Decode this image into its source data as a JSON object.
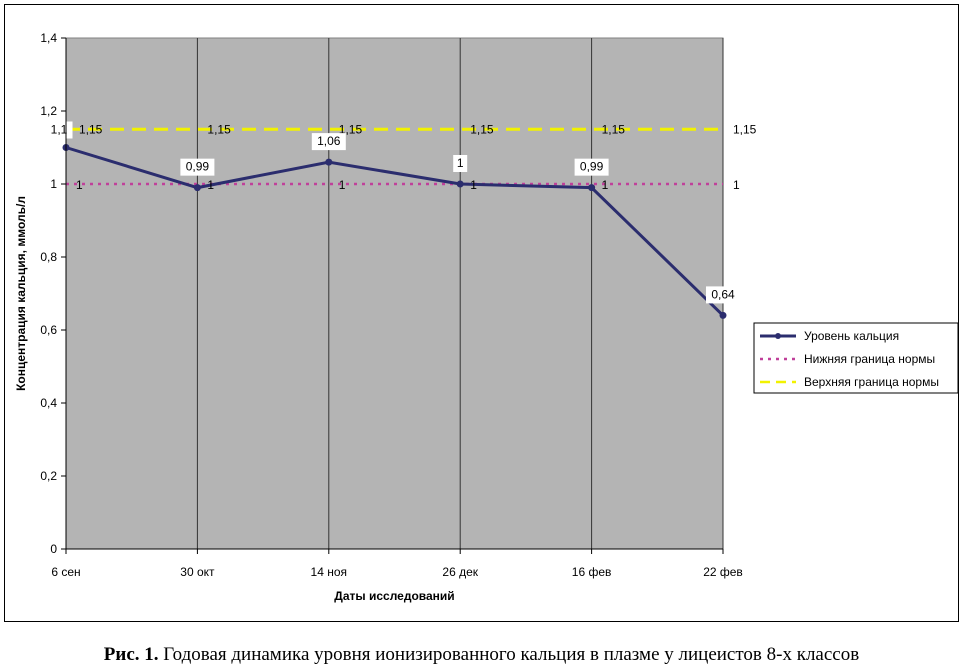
{
  "caption": {
    "prefix": "Рис. 1.",
    "text": "Годовая динамика уровня ионизированного кальция в плазме у лицеистов 8-х классов"
  },
  "chart_data": {
    "type": "line",
    "categories": [
      "6 сен",
      "30 окт",
      "14 ноя",
      "26 дек",
      "16 фев",
      "22 фев"
    ],
    "series": [
      {
        "name": "Уровень кальция",
        "values": [
          1.1,
          0.99,
          1.06,
          1.0,
          0.99,
          0.64
        ],
        "labels": [
          "1,1",
          "0,99",
          "1,06",
          "1",
          "0,99",
          "0,64"
        ],
        "color": "#2b2d6e",
        "style": "solid-marker"
      },
      {
        "name": "Нижняя граница нормы",
        "values": [
          1,
          1,
          1,
          1,
          1,
          1
        ],
        "labels": [
          "1",
          "1",
          "1",
          "1",
          "1",
          "1"
        ],
        "color": "#c0409a",
        "style": "dotted"
      },
      {
        "name": "Верхняя граница нормы",
        "values": [
          1.15,
          1.15,
          1.15,
          1.15,
          1.15,
          1.15
        ],
        "labels": [
          "1,15",
          "1,15",
          "1,15",
          "1,15",
          "1,15",
          "1,15"
        ],
        "color": "#f2f200",
        "style": "dashed"
      }
    ],
    "xlabel": "Даты исследований",
    "ylabel": "Концентрация кальция, ммоль/л",
    "ylim": [
      0,
      1.4
    ],
    "yticks": [
      0,
      0.2,
      0.4,
      0.6,
      0.8,
      1,
      1.2,
      1.4
    ],
    "ytick_labels": [
      "0",
      "0,2",
      "0,4",
      "0,6",
      "0,8",
      "1",
      "1,2",
      "1,4"
    ],
    "grid": "vertical",
    "plot_background": "#b4b4b4",
    "legend": "right"
  }
}
